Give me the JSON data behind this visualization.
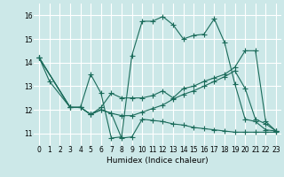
{
  "xlabel": "Humidex (Indice chaleur)",
  "background_color": "#cce8e8",
  "grid_color": "#ffffff",
  "line_color": "#1a6b5a",
  "xlim": [
    -0.5,
    23.5
  ],
  "ylim": [
    10.5,
    16.5
  ],
  "yticks": [
    11,
    12,
    13,
    14,
    15,
    16
  ],
  "xticks": [
    0,
    1,
    2,
    3,
    4,
    5,
    6,
    7,
    8,
    9,
    10,
    11,
    12,
    13,
    14,
    15,
    16,
    17,
    18,
    19,
    20,
    21,
    22,
    23
  ],
  "line1_x": [
    0,
    1,
    3,
    4,
    5,
    6,
    7,
    8,
    9,
    10,
    11,
    12,
    13,
    14,
    15,
    16,
    17,
    18,
    19,
    20,
    21,
    22,
    23
  ],
  "line1_y": [
    14.2,
    13.2,
    12.1,
    12.1,
    13.5,
    12.7,
    10.8,
    10.85,
    14.3,
    15.75,
    15.75,
    15.95,
    15.6,
    15.0,
    15.15,
    15.2,
    15.85,
    14.85,
    13.1,
    11.6,
    11.5,
    11.15,
    11.1
  ],
  "line2_x": [
    0,
    3,
    4,
    5,
    6,
    7,
    8,
    9,
    10,
    11,
    12,
    13,
    14,
    15,
    16,
    17,
    18,
    19,
    20,
    21,
    22,
    23
  ],
  "line2_y": [
    14.2,
    12.1,
    12.1,
    11.8,
    12.1,
    12.7,
    12.5,
    12.5,
    12.5,
    12.6,
    12.8,
    12.5,
    12.9,
    13.0,
    13.2,
    13.35,
    13.5,
    13.8,
    14.5,
    14.5,
    11.5,
    11.1
  ],
  "line3_x": [
    0,
    3,
    4,
    5,
    6,
    7,
    8,
    9,
    10,
    11,
    12,
    13,
    14,
    15,
    16,
    17,
    18,
    19,
    20,
    21,
    22,
    23
  ],
  "line3_y": [
    14.2,
    12.1,
    12.1,
    11.8,
    12.0,
    11.85,
    10.8,
    10.85,
    11.6,
    11.55,
    11.5,
    11.4,
    11.35,
    11.25,
    11.2,
    11.15,
    11.1,
    11.05,
    11.05,
    11.05,
    11.05,
    11.05
  ],
  "line4_x": [
    0,
    3,
    4,
    5,
    6,
    7,
    8,
    9,
    10,
    11,
    12,
    13,
    14,
    15,
    16,
    17,
    18,
    19,
    20,
    21,
    22,
    23
  ],
  "line4_y": [
    14.2,
    12.1,
    12.1,
    11.8,
    12.0,
    11.85,
    11.75,
    11.75,
    11.9,
    12.05,
    12.2,
    12.45,
    12.65,
    12.8,
    13.0,
    13.2,
    13.4,
    13.65,
    12.9,
    11.6,
    11.4,
    11.1
  ]
}
